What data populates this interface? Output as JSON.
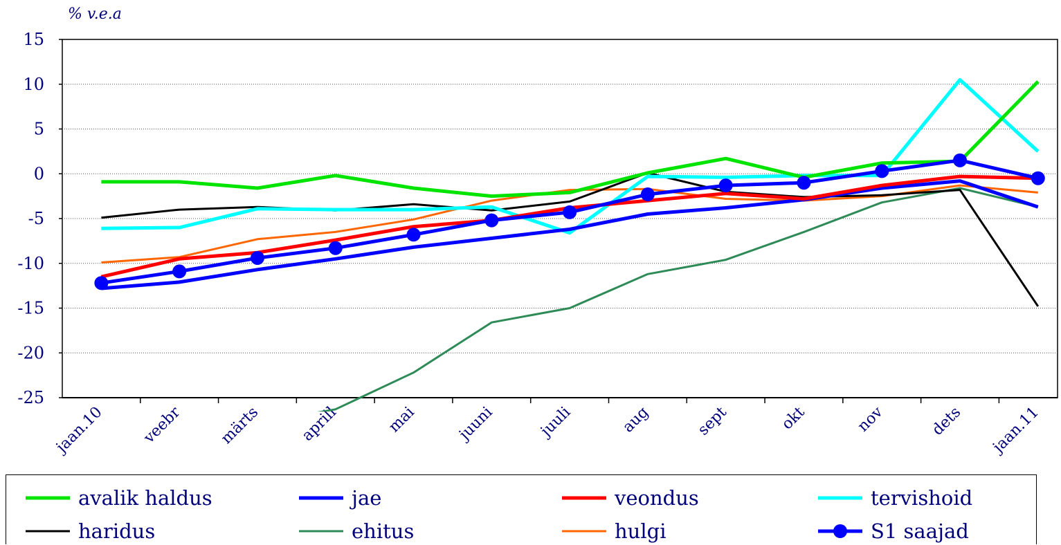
{
  "unit_label": "% v.e.a",
  "chart_data": {
    "type": "line",
    "title": "",
    "xlabel": "",
    "ylabel": "% v.e.a",
    "categories": [
      "jaan.10",
      "veebr",
      "märts",
      "aprill",
      "mai",
      "juuni",
      "juuli",
      "aug",
      "sept",
      "okt",
      "nov",
      "dets",
      "jaan.11"
    ],
    "ylim": [
      -25,
      15
    ],
    "yticks": [
      15,
      10,
      5,
      0,
      -5,
      -10,
      -15,
      -20,
      -25
    ],
    "grid": "horizontal dotted",
    "legend_position": "bottom",
    "series": [
      {
        "name": "avalik haldus",
        "color": "#00e400",
        "width": 5,
        "marker": false,
        "values": [
          -0.9,
          -0.9,
          -1.6,
          -0.2,
          -1.6,
          -2.5,
          -2.1,
          0.1,
          1.7,
          -0.4,
          1.2,
          1.4,
          10.3
        ]
      },
      {
        "name": "jae",
        "color": "#0000ff",
        "width": 5,
        "marker": false,
        "values": [
          -12.8,
          -12.1,
          -10.7,
          -9.5,
          -8.2,
          -7.2,
          -6.2,
          -4.5,
          -3.8,
          -2.9,
          -1.6,
          -0.8,
          -3.7
        ]
      },
      {
        "name": "veondus",
        "color": "#ff0000",
        "width": 5,
        "marker": false,
        "values": [
          -11.5,
          -9.5,
          -8.8,
          -7.4,
          -5.9,
          -5.2,
          -3.8,
          -3.0,
          -2.2,
          -2.8,
          -1.3,
          -0.3,
          -0.5
        ]
      },
      {
        "name": "tervishoid",
        "color": "#00ffff",
        "width": 5,
        "marker": false,
        "values": [
          -6.1,
          -6.0,
          -3.9,
          -4.0,
          -4.0,
          -3.7,
          -6.6,
          -0.3,
          -0.4,
          -0.2,
          -0.2,
          10.5,
          2.5
        ]
      },
      {
        "name": "haridus",
        "color": "#000000",
        "width": 3,
        "marker": false,
        "values": [
          -4.9,
          -4.0,
          -3.7,
          -4.1,
          -3.4,
          -4.1,
          -3.1,
          0.1,
          -2.0,
          -2.6,
          -2.4,
          -1.8,
          -14.8
        ]
      },
      {
        "name": "ehitus",
        "color": "#2e8b57",
        "width": 3,
        "marker": false,
        "values": [
          null,
          null,
          null,
          -25.0,
          -22.2,
          -16.6,
          -15.0,
          -11.2,
          -9.6,
          -6.5,
          -3.2,
          -1.6,
          -3.7
        ]
      },
      {
        "name": "hulgi",
        "color": "#ff6600",
        "width": 3,
        "marker": false,
        "values": [
          -9.9,
          -9.3,
          -7.3,
          -6.5,
          -5.1,
          -3.0,
          -1.8,
          -1.7,
          -2.8,
          -3.0,
          -2.5,
          -1.3,
          -2.1
        ]
      },
      {
        "name": "S1 saajad",
        "color": "#0000ff",
        "width": 5,
        "marker": true,
        "values": [
          -12.2,
          -10.9,
          -9.4,
          -8.3,
          -6.8,
          -5.2,
          -4.3,
          -2.3,
          -1.3,
          -1.0,
          0.3,
          1.5,
          -0.5
        ]
      }
    ]
  }
}
